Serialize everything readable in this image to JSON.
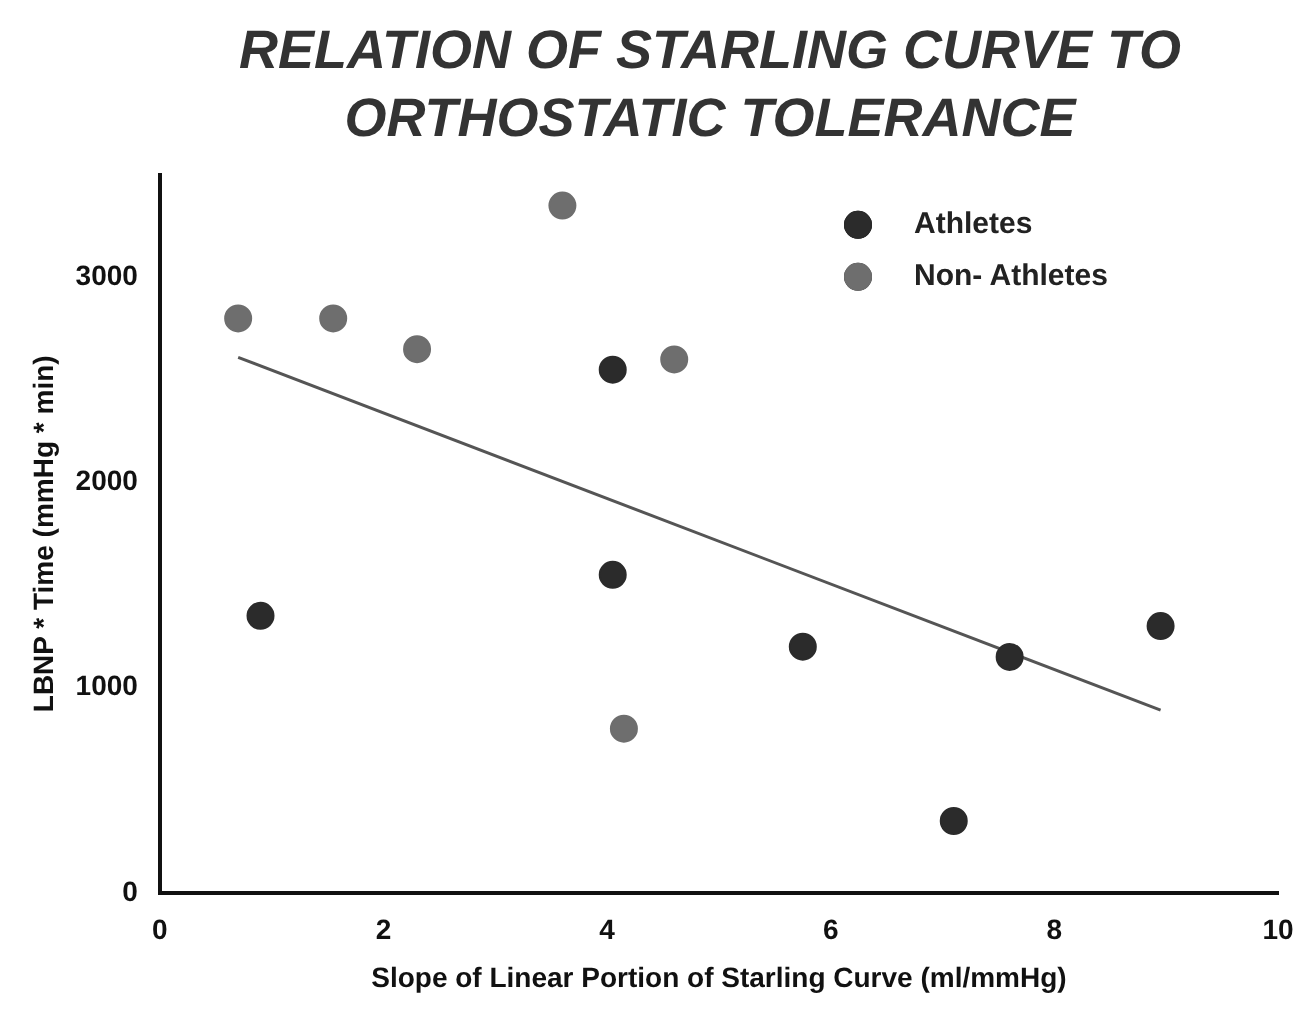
{
  "chart_data": {
    "type": "scatter",
    "title": "RELATION OF STARLING CURVE TO ORTHOSTATIC TOLERANCE",
    "xlabel": "Slope of Linear Portion of Starling Curve (ml/mmHg)",
    "ylabel": "LBNP * Time (mmHg * min)",
    "xlim": [
      0,
      10
    ],
    "xticks": [
      0,
      2,
      4,
      6,
      8,
      10
    ],
    "ylim": [
      0,
      3500
    ],
    "yticks": [
      0,
      1000,
      2000,
      3000
    ],
    "legend": "top right",
    "marker": "circle",
    "grid": false,
    "series": [
      {
        "name": "Athletes",
        "color": "#2b2b2b",
        "x": [
          0.9,
          4.05,
          4.05,
          5.75,
          7.6,
          8.95,
          7.1
        ],
        "values": [
          1350,
          2550,
          1550,
          1200,
          1150,
          1300,
          350
        ]
      },
      {
        "name": "Non- Athletes",
        "color": "#6e6e6e",
        "x": [
          0.7,
          1.55,
          2.3,
          3.6,
          4.6,
          4.15
        ],
        "values": [
          2800,
          2800,
          2650,
          3350,
          2600,
          800
        ]
      },
      {
        "type": "line",
        "color": "#555555",
        "marker": "none",
        "x": [
          0.7,
          8.95
        ],
        "values": [
          2610,
          890
        ]
      }
    ]
  }
}
